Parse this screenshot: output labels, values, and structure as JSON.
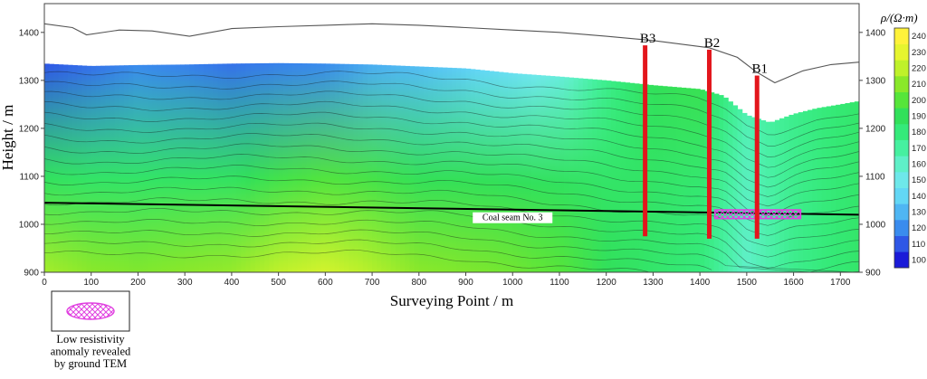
{
  "chart_data": {
    "type": "heatmap",
    "title": "",
    "xlabel": "Surveying Point / m",
    "ylabel": "Height / m",
    "xlim": [
      0,
      1740
    ],
    "ylim": [
      900,
      1460
    ],
    "x_ticks": [
      0,
      100,
      200,
      300,
      400,
      500,
      600,
      700,
      800,
      900,
      1000,
      1100,
      1200,
      1300,
      1400,
      1500,
      1600,
      1700
    ],
    "y_ticks": [
      900,
      1000,
      1100,
      1200,
      1300,
      1400
    ],
    "colorbar": {
      "label": "ρ/(Ω·m)",
      "min": 100,
      "max": 240,
      "ticks": [
        100,
        110,
        120,
        130,
        140,
        150,
        160,
        170,
        180,
        190,
        200,
        210,
        220,
        230,
        240
      ],
      "colors": [
        "#1a1ad8",
        "#2f57e6",
        "#3a8cee",
        "#4fb6f3",
        "#63d7f5",
        "#6ee8ea",
        "#5ff0c8",
        "#46f0a0",
        "#35ea7a",
        "#32e05a",
        "#56e53a",
        "#8ae82a",
        "#bff12a",
        "#e6f52f",
        "#fff23a"
      ]
    },
    "surface_line": [
      [
        0,
        1418
      ],
      [
        60,
        1410
      ],
      [
        90,
        1395
      ],
      [
        160,
        1405
      ],
      [
        230,
        1403
      ],
      [
        310,
        1392
      ],
      [
        400,
        1408
      ],
      [
        500,
        1412
      ],
      [
        600,
        1415
      ],
      [
        700,
        1418
      ],
      [
        800,
        1415
      ],
      [
        900,
        1410
      ],
      [
        1000,
        1405
      ],
      [
        1100,
        1400
      ],
      [
        1200,
        1392
      ],
      [
        1300,
        1383
      ],
      [
        1420,
        1368
      ],
      [
        1480,
        1348
      ],
      [
        1520,
        1318
      ],
      [
        1560,
        1295
      ],
      [
        1620,
        1320
      ],
      [
        1680,
        1333
      ],
      [
        1740,
        1338
      ]
    ],
    "data_top_boundary": [
      [
        0,
        1335
      ],
      [
        100,
        1330
      ],
      [
        200,
        1332
      ],
      [
        300,
        1333
      ],
      [
        400,
        1335
      ],
      [
        500,
        1336
      ],
      [
        600,
        1335
      ],
      [
        700,
        1333
      ],
      [
        800,
        1329
      ],
      [
        900,
        1325
      ],
      [
        1000,
        1315
      ],
      [
        1100,
        1308
      ],
      [
        1200,
        1300
      ],
      [
        1300,
        1290
      ],
      [
        1400,
        1282
      ],
      [
        1450,
        1268
      ],
      [
        1500,
        1228
      ],
      [
        1550,
        1212
      ],
      [
        1600,
        1230
      ],
      [
        1650,
        1242
      ],
      [
        1700,
        1250
      ],
      [
        1735,
        1256
      ]
    ],
    "resistivity_profile": [
      {
        "x": 0,
        "top": 110,
        "bottom": 215
      },
      {
        "x": 100,
        "top": 115,
        "bottom": 210
      },
      {
        "x": 200,
        "top": 120,
        "bottom": 208
      },
      {
        "x": 300,
        "top": 118,
        "bottom": 210
      },
      {
        "x": 400,
        "top": 115,
        "bottom": 212
      },
      {
        "x": 500,
        "top": 118,
        "bottom": 220
      },
      {
        "x": 600,
        "top": 120,
        "bottom": 225
      },
      {
        "x": 700,
        "top": 128,
        "bottom": 218
      },
      {
        "x": 800,
        "top": 132,
        "bottom": 210
      },
      {
        "x": 900,
        "top": 138,
        "bottom": 208
      },
      {
        "x": 1000,
        "top": 145,
        "bottom": 205
      },
      {
        "x": 1100,
        "top": 155,
        "bottom": 200
      },
      {
        "x": 1200,
        "top": 175,
        "bottom": 190
      },
      {
        "x": 1300,
        "top": 190,
        "bottom": 185
      },
      {
        "x": 1400,
        "top": 192,
        "bottom": 180
      },
      {
        "x": 1500,
        "top": 165,
        "bottom": 160
      },
      {
        "x": 1600,
        "top": 175,
        "bottom": 175
      },
      {
        "x": 1740,
        "top": 185,
        "bottom": 185
      }
    ],
    "coal_seam": {
      "label": "Coal seam No. 3",
      "points": [
        [
          0,
          1045
        ],
        [
          1740,
          1020
        ]
      ]
    },
    "boreholes": [
      {
        "name": "B3",
        "x": 1283,
        "top": 1373,
        "bottom": 975
      },
      {
        "name": "B2",
        "x": 1420,
        "top": 1364,
        "bottom": 970
      },
      {
        "name": "B1",
        "x": 1522,
        "top": 1310,
        "bottom": 970
      }
    ],
    "anomaly": {
      "x_start": 1432,
      "x_end": 1615,
      "y_low": 1012,
      "y_high": 1030
    },
    "legend": {
      "label": "Low resistivity anomaly revealed by ground TEM"
    }
  }
}
